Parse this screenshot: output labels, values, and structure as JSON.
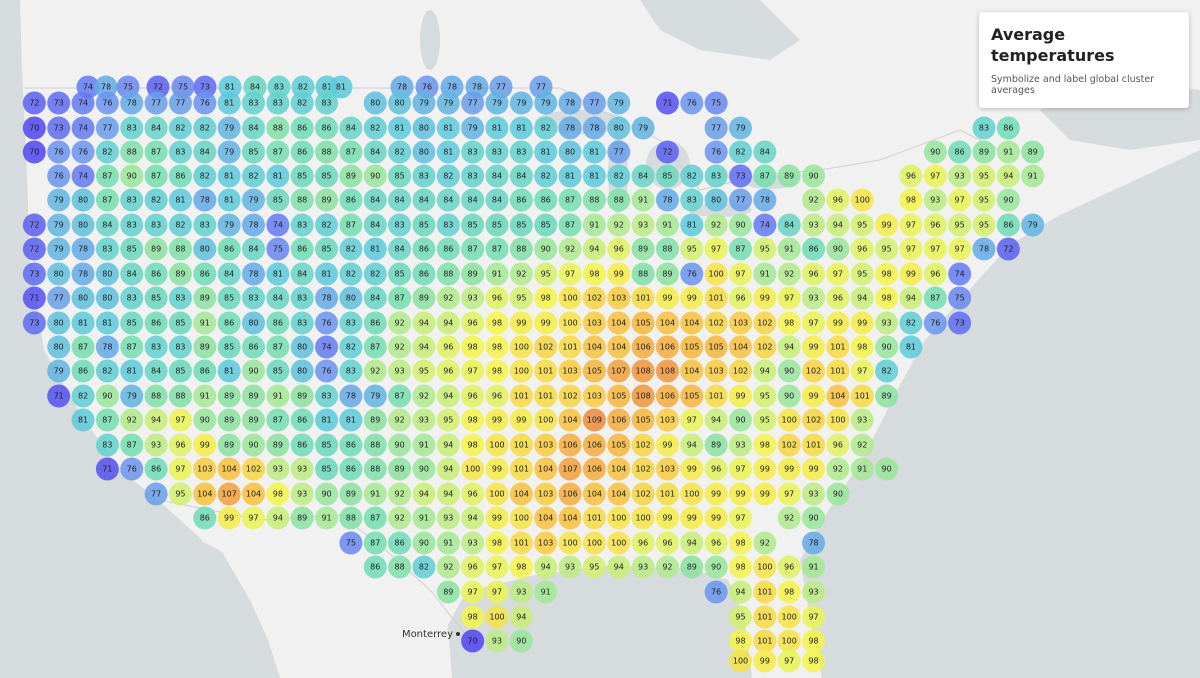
{
  "map": {
    "title": "Average temperatures",
    "subtitle": "Symbolize and label global cluster averages",
    "place_label": "Monterrey",
    "colors": [
      "#4f44f2",
      "#6b8ff0",
      "#5ccbd8",
      "#6fdcb0",
      "#b4eb8a",
      "#f4f54a",
      "#f8c73c",
      "#f08a3a"
    ],
    "rows": [
      [
        74,
        78,
        75,
        72,
        75,
        73,
        81,
        84,
        83,
        82,
        81,
        81,
        78,
        76,
        78,
        78,
        77,
        77
      ],
      [
        72,
        73,
        74,
        76,
        78,
        77,
        77,
        76,
        81,
        83,
        83,
        82,
        83,
        null,
        80,
        80,
        79,
        79,
        77,
        79,
        79,
        79,
        78,
        77,
        79,
        null,
        71,
        76,
        75
      ],
      [
        70,
        73,
        74,
        77,
        83,
        84,
        82,
        82,
        79,
        84,
        88,
        86,
        86,
        84,
        82,
        81,
        80,
        81,
        79,
        81,
        81,
        82,
        78,
        78,
        80,
        79,
        null,
        null,
        77,
        79,
        null,
        null,
        null,
        null,
        null,
        null,
        null,
        null,
        null,
        83,
        86
      ],
      [
        70,
        76,
        76,
        82,
        88,
        87,
        83,
        84,
        79,
        85,
        87,
        86,
        88,
        87,
        84,
        82,
        80,
        81,
        83,
        83,
        83,
        81,
        80,
        81,
        77,
        null,
        72,
        null,
        76,
        82,
        84,
        null,
        null,
        null,
        null,
        null,
        null,
        90,
        86,
        89,
        91,
        89
      ],
      [
        76,
        74,
        87,
        90,
        87,
        86,
        82,
        81,
        82,
        81,
        85,
        85,
        89,
        90,
        85,
        83,
        82,
        83,
        84,
        84,
        82,
        81,
        81,
        82,
        84,
        85,
        82,
        83,
        73,
        87,
        89,
        90,
        null,
        null,
        null,
        96,
        97,
        93,
        95,
        94,
        91
      ],
      [
        79,
        80,
        87,
        83,
        82,
        81,
        78,
        81,
        79,
        85,
        88,
        89,
        86,
        84,
        84,
        84,
        84,
        84,
        84,
        86,
        86,
        87,
        88,
        88,
        91,
        78,
        83,
        80,
        77,
        78,
        null,
        92,
        96,
        100,
        null,
        98,
        93,
        97,
        95,
        90
      ],
      [
        72,
        79,
        80,
        84,
        83,
        83,
        82,
        83,
        79,
        78,
        74,
        83,
        82,
        87,
        84,
        83,
        85,
        83,
        85,
        85,
        85,
        85,
        87,
        91,
        92,
        93,
        91,
        81,
        92,
        90,
        74,
        84,
        93,
        94,
        95,
        99,
        97,
        96,
        95,
        95,
        86,
        79
      ],
      [
        72,
        79,
        78,
        83,
        85,
        89,
        88,
        80,
        86,
        84,
        75,
        86,
        85,
        82,
        81,
        84,
        86,
        86,
        87,
        87,
        88,
        90,
        92,
        94,
        96,
        89,
        88,
        95,
        97,
        87,
        95,
        91,
        86,
        90,
        96,
        95,
        97,
        97,
        97,
        78,
        72
      ],
      [
        73,
        80,
        78,
        80,
        84,
        86,
        89,
        86,
        84,
        78,
        81,
        84,
        81,
        82,
        82,
        85,
        86,
        88,
        89,
        91,
        92,
        95,
        97,
        98,
        99,
        88,
        89,
        76,
        100,
        97,
        91,
        92,
        96,
        97,
        95,
        98,
        99,
        96,
        74
      ],
      [
        71,
        77,
        80,
        80,
        83,
        85,
        83,
        89,
        85,
        83,
        84,
        83,
        78,
        80,
        84,
        87,
        89,
        92,
        93,
        96,
        95,
        98,
        100,
        102,
        103,
        101,
        99,
        99,
        101,
        96,
        99,
        97,
        93,
        96,
        94,
        98,
        94,
        87,
        75
      ],
      [
        73,
        80,
        81,
        81,
        85,
        86,
        85,
        91,
        86,
        80,
        86,
        83,
        76,
        83,
        86,
        92,
        94,
        94,
        96,
        98,
        99,
        99,
        100,
        103,
        104,
        105,
        104,
        104,
        102,
        103,
        102,
        98,
        97,
        99,
        99,
        93,
        82,
        76,
        73
      ],
      [
        80,
        87,
        78,
        87,
        83,
        83,
        89,
        85,
        86,
        87,
        80,
        74,
        82,
        87,
        92,
        94,
        96,
        98,
        98,
        100,
        102,
        101,
        104,
        104,
        106,
        106,
        105,
        105,
        104,
        102,
        94,
        99,
        101,
        98,
        90,
        81
      ],
      [
        79,
        86,
        82,
        81,
        84,
        85,
        86,
        81,
        90,
        85,
        80,
        76,
        83,
        92,
        93,
        95,
        96,
        97,
        98,
        100,
        101,
        103,
        105,
        107,
        108,
        108,
        104,
        103,
        102,
        94,
        90,
        102,
        101,
        97,
        82
      ],
      [
        71,
        82,
        90,
        79,
        88,
        88,
        91,
        89,
        89,
        91,
        89,
        83,
        78,
        79,
        87,
        92,
        94,
        96,
        96,
        101,
        101,
        102,
        103,
        105,
        108,
        106,
        105,
        101,
        99,
        95,
        90,
        99,
        104,
        101,
        89
      ],
      [
        81,
        87,
        92,
        94,
        97,
        90,
        89,
        89,
        87,
        86,
        81,
        81,
        89,
        92,
        93,
        95,
        98,
        99,
        99,
        100,
        104,
        109,
        106,
        105,
        103,
        97,
        94,
        90,
        95,
        100,
        102,
        100,
        93
      ],
      [
        83,
        87,
        93,
        96,
        99,
        89,
        90,
        89,
        86,
        85,
        86,
        88,
        90,
        91,
        94,
        98,
        100,
        101,
        103,
        106,
        106,
        105,
        102,
        99,
        94,
        89,
        93,
        98,
        102,
        101,
        96,
        92
      ],
      [
        71,
        76,
        86,
        97,
        103,
        104,
        102,
        93,
        93,
        85,
        86,
        88,
        89,
        90,
        94,
        100,
        99,
        101,
        104,
        107,
        106,
        104,
        102,
        103,
        99,
        96,
        97,
        99,
        99,
        99,
        92,
        91,
        90
      ],
      [
        77,
        95,
        104,
        107,
        104,
        98,
        93,
        90,
        89,
        91,
        92,
        94,
        94,
        96,
        100,
        104,
        103,
        106,
        104,
        104,
        102,
        101,
        100,
        99,
        99,
        99,
        97,
        93,
        90
      ],
      [
        86,
        99,
        97,
        94,
        89,
        91,
        88,
        87,
        92,
        91,
        93,
        94,
        99,
        100,
        104,
        104,
        101,
        100,
        100,
        99,
        99,
        99,
        97,
        null,
        92,
        90
      ],
      [
        75,
        87,
        86,
        90,
        91,
        93,
        98,
        101,
        103,
        100,
        100,
        100,
        96,
        96,
        94,
        96,
        98,
        92,
        null,
        78
      ],
      [
        86,
        88,
        82,
        92,
        96,
        97,
        98,
        94,
        93,
        95,
        94,
        93,
        92,
        89,
        90,
        98,
        100,
        96,
        91
      ],
      [
        89,
        97,
        97,
        93,
        91,
        null,
        null,
        null,
        null,
        null,
        null,
        76,
        94,
        101,
        98,
        93
      ],
      [
        98,
        100,
        94,
        null,
        null,
        null,
        null,
        null,
        null,
        null,
        null,
        95,
        101,
        100,
        97
      ],
      [
        70,
        93,
        90,
        null,
        null,
        null,
        null,
        null,
        null,
        null,
        null,
        98,
        101,
        100,
        98
      ],
      [
        100,
        99,
        97,
        98
      ]
    ]
  }
}
